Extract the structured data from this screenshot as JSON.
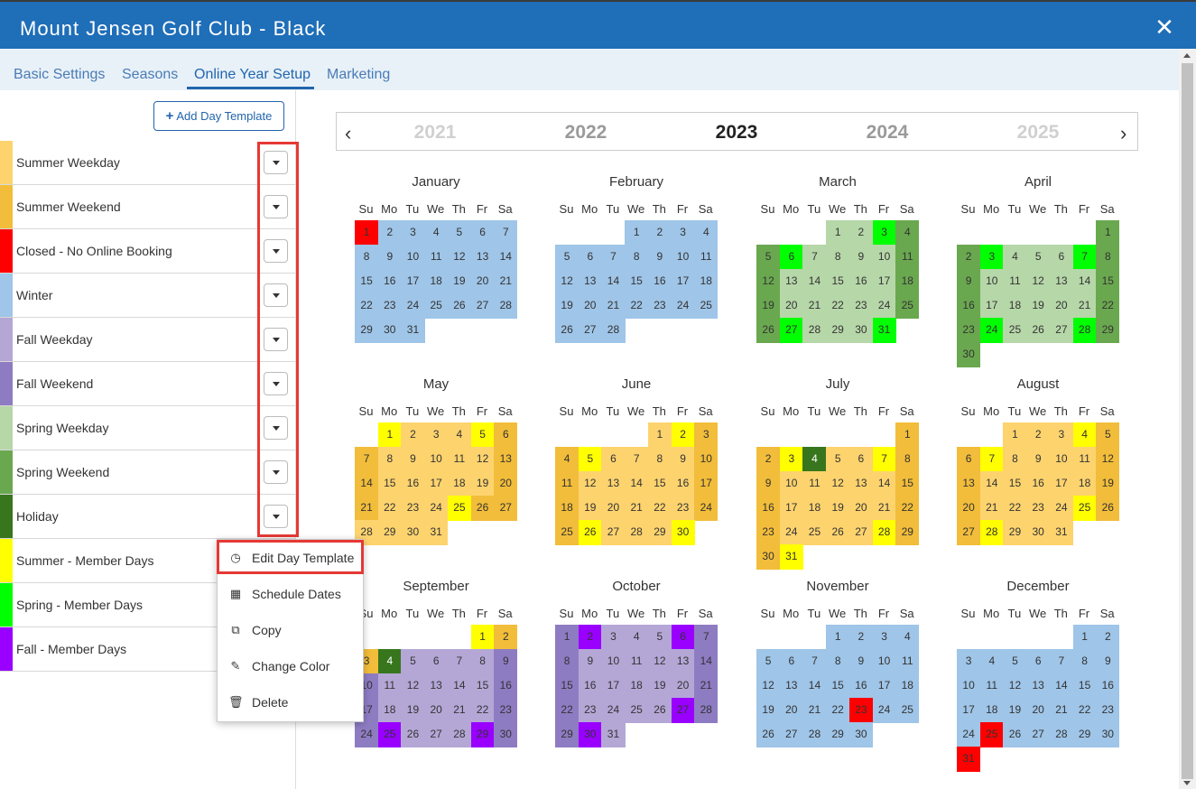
{
  "window": {
    "title": "Mount Jensen Golf Club - Black",
    "close_symbol": "✕"
  },
  "tabs": [
    {
      "label": "Basic Settings",
      "active": false
    },
    {
      "label": "Seasons",
      "active": false
    },
    {
      "label": "Online Year Setup",
      "active": true
    },
    {
      "label": "Marketing",
      "active": false
    }
  ],
  "sidebar": {
    "add_button": {
      "icon": "plus-icon",
      "label": "Add Day Template"
    },
    "templates": [
      {
        "label": "Summer Weekday",
        "color": "#fdd36e"
      },
      {
        "label": "Summer Weekend",
        "color": "#f2bd3a"
      },
      {
        "label": "Closed - No Online Booking",
        "color": "#ff0000"
      },
      {
        "label": "Winter",
        "color": "#9fc5e8"
      },
      {
        "label": "Fall Weekday",
        "color": "#b4a7d6"
      },
      {
        "label": "Fall Weekend",
        "color": "#8e7cc3"
      },
      {
        "label": "Spring Weekday",
        "color": "#b6d7a8"
      },
      {
        "label": "Spring Weekend",
        "color": "#6aa84f"
      },
      {
        "label": "Holiday",
        "color": "#38761d"
      },
      {
        "label": "Summer - Member Days",
        "color": "#ffff00"
      },
      {
        "label": "Spring - Member Days",
        "color": "#00ff00"
      },
      {
        "label": "Fall - Member Days",
        "color": "#9900ff"
      }
    ]
  },
  "context_menu": {
    "items": [
      {
        "label": "Edit Day Template",
        "icon": "clock-icon"
      },
      {
        "label": "Schedule Dates",
        "icon": "calendar-icon"
      },
      {
        "label": "Copy",
        "icon": "copy-icon"
      },
      {
        "label": "Change Color",
        "icon": "paintbrush-icon"
      },
      {
        "label": "Delete",
        "icon": "trash-icon"
      }
    ]
  },
  "year_selector": {
    "prev": "‹",
    "next": "›",
    "years": [
      {
        "label": "2021",
        "state": "faint"
      },
      {
        "label": "2022",
        "state": "near"
      },
      {
        "label": "2023",
        "state": "selected"
      },
      {
        "label": "2024",
        "state": "near"
      },
      {
        "label": "2025",
        "state": "faint"
      }
    ]
  },
  "calendar": {
    "weekdays": [
      "Su",
      "Mo",
      "Tu",
      "We",
      "Th",
      "Fr",
      "Sa"
    ],
    "palette": {
      "W": "#9fc5e8",
      "C": "#ff0000",
      "SW": "#b6d7a8",
      "SE": "#6aa84f",
      "SM": "#00ff00",
      "UW": "#fdd36e",
      "UE": "#f2bd3a",
      "UM": "#ffff00",
      "H": "#38761d",
      "FW": "#b4a7d6",
      "FE": "#8e7cc3",
      "FM": "#9900ff"
    },
    "months": [
      {
        "name": "January",
        "start": 0,
        "days": [
          "C",
          "W",
          "W",
          "W",
          "W",
          "W",
          "W",
          "W",
          "W",
          "W",
          "W",
          "W",
          "W",
          "W",
          "W",
          "W",
          "W",
          "W",
          "W",
          "W",
          "W",
          "W",
          "W",
          "W",
          "W",
          "W",
          "W",
          "W",
          "W",
          "W",
          "W"
        ]
      },
      {
        "name": "February",
        "start": 3,
        "days": [
          "W",
          "W",
          "W",
          "W",
          "W",
          "W",
          "W",
          "W",
          "W",
          "W",
          "W",
          "W",
          "W",
          "W",
          "W",
          "W",
          "W",
          "W",
          "W",
          "W",
          "W",
          "W",
          "W",
          "W",
          "W",
          "W",
          "W",
          "W"
        ]
      },
      {
        "name": "March",
        "start": 3,
        "days": [
          "SW",
          "SW",
          "SM",
          "SE",
          "SE",
          "SM",
          "SW",
          "SW",
          "SW",
          "SW",
          "SE",
          "SE",
          "SW",
          "SW",
          "SW",
          "SW",
          "SW",
          "SE",
          "SE",
          "SW",
          "SW",
          "SW",
          "SW",
          "SW",
          "SE",
          "SE",
          "SM",
          "SW",
          "SW",
          "SW",
          "SM"
        ]
      },
      {
        "name": "April",
        "start": 6,
        "days": [
          "SE",
          "SE",
          "SM",
          "SW",
          "SW",
          "SW",
          "SM",
          "SE",
          "SE",
          "SW",
          "SW",
          "SW",
          "SW",
          "SW",
          "SE",
          "SE",
          "SW",
          "SW",
          "SW",
          "SW",
          "SW",
          "SE",
          "SE",
          "SM",
          "SW",
          "SW",
          "SW",
          "SM",
          "SE",
          "SE"
        ]
      },
      {
        "name": "May",
        "start": 1,
        "days": [
          "UM",
          "UW",
          "UW",
          "UW",
          "UM",
          "UE",
          "UE",
          "UW",
          "UW",
          "UW",
          "UW",
          "UW",
          "UE",
          "UE",
          "UW",
          "UW",
          "UW",
          "UW",
          "UW",
          "UE",
          "UE",
          "UW",
          "UW",
          "UW",
          "UM",
          "UE",
          "UE",
          "UW",
          "UW",
          "UW",
          "UW"
        ]
      },
      {
        "name": "June",
        "start": 4,
        "days": [
          "UW",
          "UM",
          "UE",
          "UE",
          "UM",
          "UW",
          "UW",
          "UW",
          "UW",
          "UE",
          "UE",
          "UW",
          "UW",
          "UW",
          "UW",
          "UW",
          "UE",
          "UE",
          "UW",
          "UW",
          "UW",
          "UW",
          "UW",
          "UE",
          "UE",
          "UM",
          "UW",
          "UW",
          "UW",
          "UM"
        ]
      },
      {
        "name": "July",
        "start": 6,
        "days": [
          "UE",
          "UE",
          "UM",
          "H",
          "UW",
          "UW",
          "UM",
          "UE",
          "UE",
          "UW",
          "UW",
          "UW",
          "UW",
          "UW",
          "UE",
          "UE",
          "UW",
          "UW",
          "UW",
          "UW",
          "UW",
          "UE",
          "UE",
          "UW",
          "UW",
          "UW",
          "UW",
          "UM",
          "UE",
          "UE",
          "UM"
        ]
      },
      {
        "name": "August",
        "start": 2,
        "days": [
          "UW",
          "UW",
          "UW",
          "UM",
          "UE",
          "UE",
          "UM",
          "UW",
          "UW",
          "UW",
          "UW",
          "UE",
          "UE",
          "UW",
          "UW",
          "UW",
          "UW",
          "UW",
          "UE",
          "UE",
          "UW",
          "UW",
          "UW",
          "UW",
          "UM",
          "UE",
          "UE",
          "UM",
          "UW",
          "UW",
          "UW"
        ]
      },
      {
        "name": "September",
        "start": 5,
        "days": [
          "UM",
          "UE",
          "UE",
          "H",
          "FW",
          "FW",
          "FW",
          "FW",
          "FE",
          "FE",
          "FW",
          "FW",
          "FW",
          "FW",
          "FW",
          "FE",
          "FE",
          "FW",
          "FW",
          "FW",
          "FW",
          "FW",
          "FE",
          "FE",
          "FM",
          "FW",
          "FW",
          "FW",
          "FM",
          "FE"
        ]
      },
      {
        "name": "October",
        "start": 0,
        "days": [
          "FE",
          "FM",
          "FW",
          "FW",
          "FW",
          "FM",
          "FE",
          "FE",
          "FW",
          "FW",
          "FW",
          "FW",
          "FW",
          "FE",
          "FE",
          "FW",
          "FW",
          "FW",
          "FW",
          "FW",
          "FE",
          "FE",
          "FW",
          "FW",
          "FW",
          "FW",
          "FM",
          "FE",
          "FE",
          "FM",
          "FW"
        ]
      },
      {
        "name": "November",
        "start": 3,
        "days": [
          "W",
          "W",
          "W",
          "W",
          "W",
          "W",
          "W",
          "W",
          "W",
          "W",
          "W",
          "W",
          "W",
          "W",
          "W",
          "W",
          "W",
          "W",
          "W",
          "W",
          "W",
          "W",
          "C",
          "W",
          "W",
          "W",
          "W",
          "W",
          "W",
          "W"
        ]
      },
      {
        "name": "December",
        "start": 5,
        "days": [
          "W",
          "W",
          "W",
          "W",
          "W",
          "W",
          "W",
          "W",
          "W",
          "W",
          "W",
          "W",
          "W",
          "W",
          "W",
          "W",
          "W",
          "W",
          "W",
          "W",
          "W",
          "W",
          "W",
          "W",
          "C",
          "W",
          "W",
          "W",
          "W",
          "W",
          "C"
        ]
      }
    ]
  }
}
